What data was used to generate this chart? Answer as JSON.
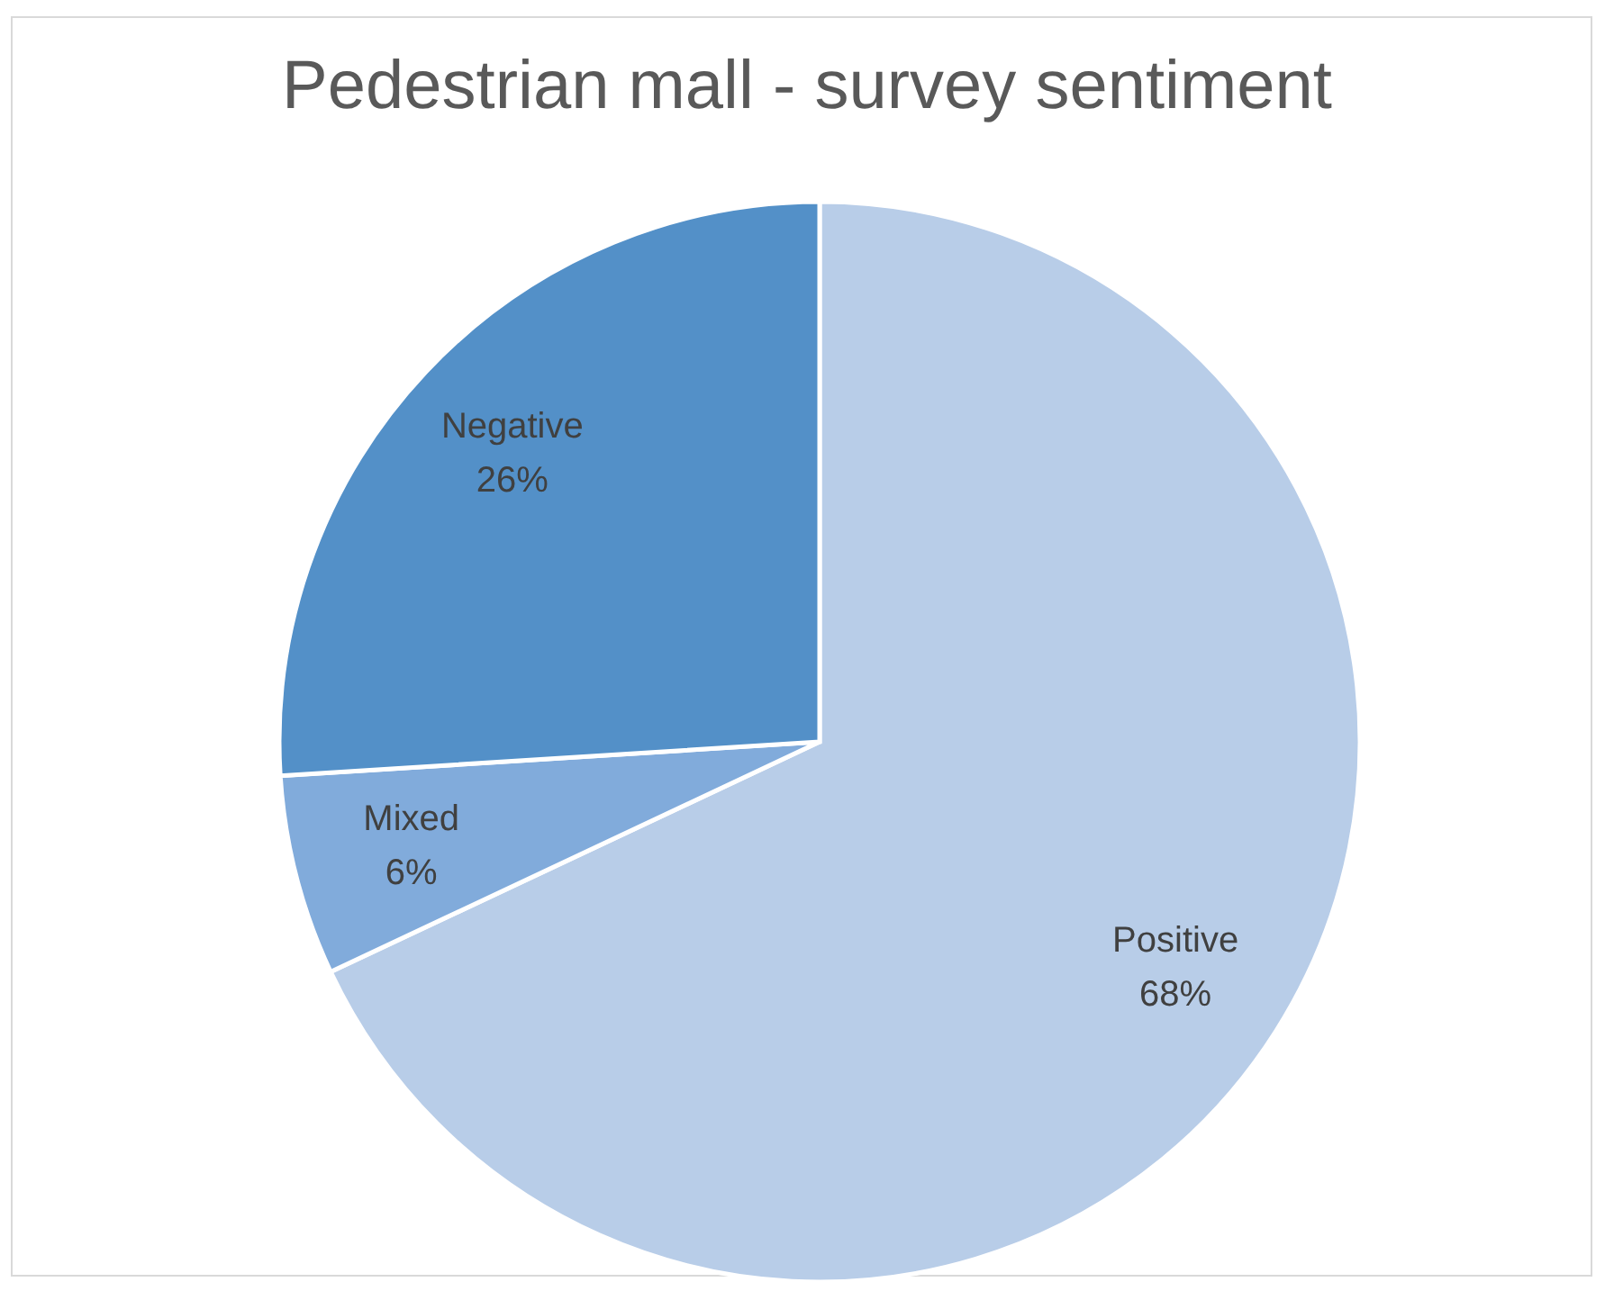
{
  "chart_data": {
    "type": "pie",
    "title": "Pedestrian mall - survey sentiment",
    "categories": [
      "Positive",
      "Mixed",
      "Negative"
    ],
    "values": [
      68,
      6,
      26
    ],
    "colors": [
      "#b8cde8",
      "#81abdb",
      "#5390c8"
    ],
    "value_labels": [
      "68%",
      "6%",
      "26%"
    ]
  }
}
